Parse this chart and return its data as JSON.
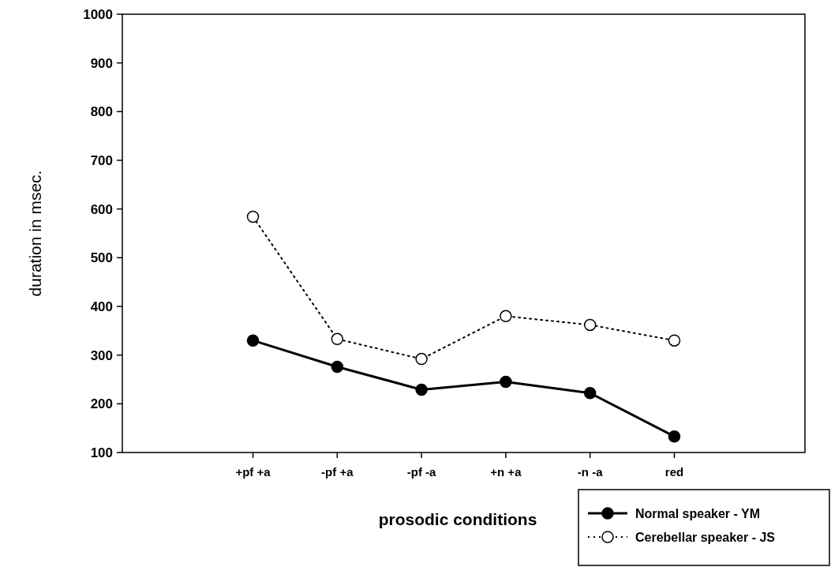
{
  "chart_data": {
    "type": "line",
    "xlabel": "prosodic conditions",
    "ylabel": "duration in msec.",
    "categories": [
      "+pf +a",
      "-pf +a",
      "-pf -a",
      "+n +a",
      "-n -a",
      "red"
    ],
    "series": [
      {
        "name": "Normal speaker - YM",
        "color": "#000000",
        "values": [
          330,
          276,
          229,
          245,
          222,
          133
        ],
        "line_style": "solid",
        "marker": "circle"
      },
      {
        "name": "Cerebellar speaker - JS",
        "color": "#000000",
        "values": [
          584,
          333,
          292,
          380,
          362,
          330
        ],
        "line_style": "dotted",
        "marker": "circle"
      }
    ],
    "ylim": [
      100,
      1000
    ],
    "yticks": [
      100,
      200,
      300,
      400,
      500,
      600,
      700,
      800,
      900,
      1000
    ],
    "grid": false,
    "legend": "bottom right"
  }
}
